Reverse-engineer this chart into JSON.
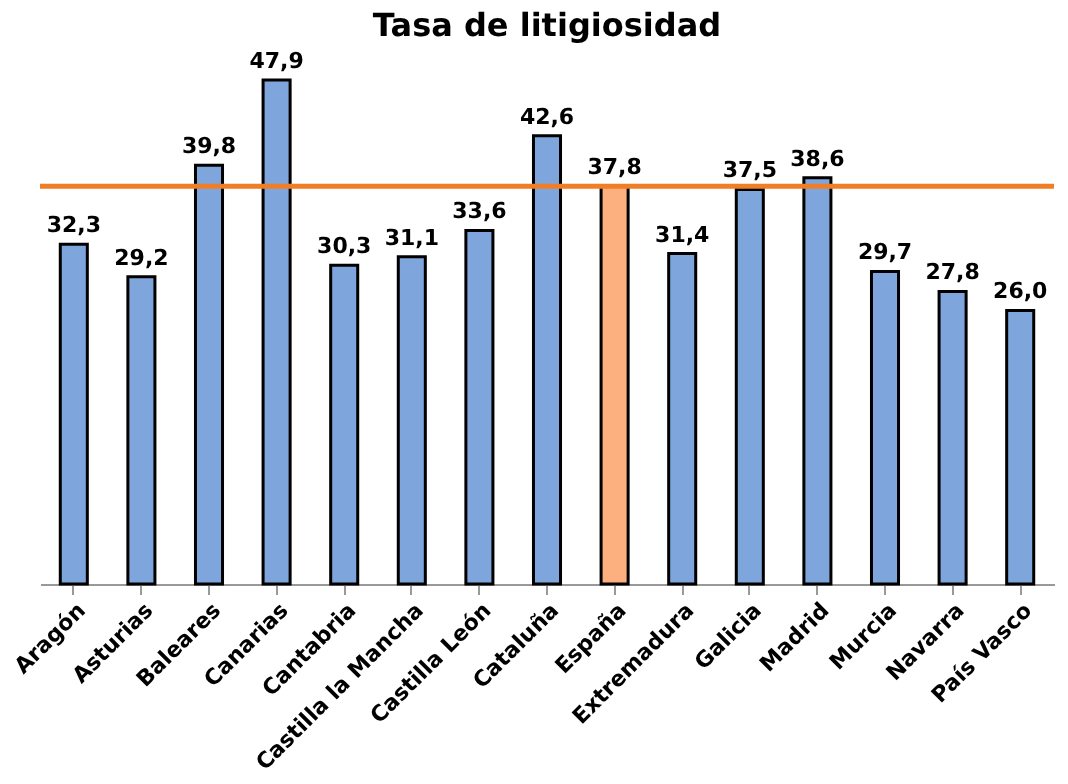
{
  "chart_data": {
    "type": "bar",
    "title": "Tasa de litigiosidad",
    "categories": [
      "Aragón",
      "Asturias",
      "Baleares",
      "Canarias",
      "Cantabria",
      "Castilla la Mancha",
      "Castilla León",
      "Cataluña",
      "España",
      "Extremadura",
      "Galicia",
      "Madrid",
      "Murcia",
      "Navarra",
      "País Vasco"
    ],
    "values": [
      32.3,
      29.2,
      39.8,
      47.9,
      30.3,
      31.1,
      33.6,
      42.6,
      37.8,
      31.4,
      37.5,
      38.6,
      29.7,
      27.8,
      26.0
    ],
    "colors": [
      "#7ea6dc",
      "#7ea6dc",
      "#7ea6dc",
      "#7ea6dc",
      "#7ea6dc",
      "#7ea6dc",
      "#7ea6dc",
      "#7ea6dc",
      "#fdb07f",
      "#7ea6dc",
      "#7ea6dc",
      "#7ea6dc",
      "#7ea6dc",
      "#7ea6dc",
      "#7ea6dc"
    ],
    "value_labels": [
      "32,3",
      "29,2",
      "39,8",
      "47,9",
      "30,3",
      "31,1",
      "33,6",
      "42,6",
      "37,8",
      "31,4",
      "37,5",
      "38,6",
      "29,7",
      "27,8",
      "26,0"
    ],
    "ref_lines": [
      {
        "axis": "y",
        "value": 37.8,
        "color": "#f07e26"
      }
    ],
    "grid": false
  }
}
